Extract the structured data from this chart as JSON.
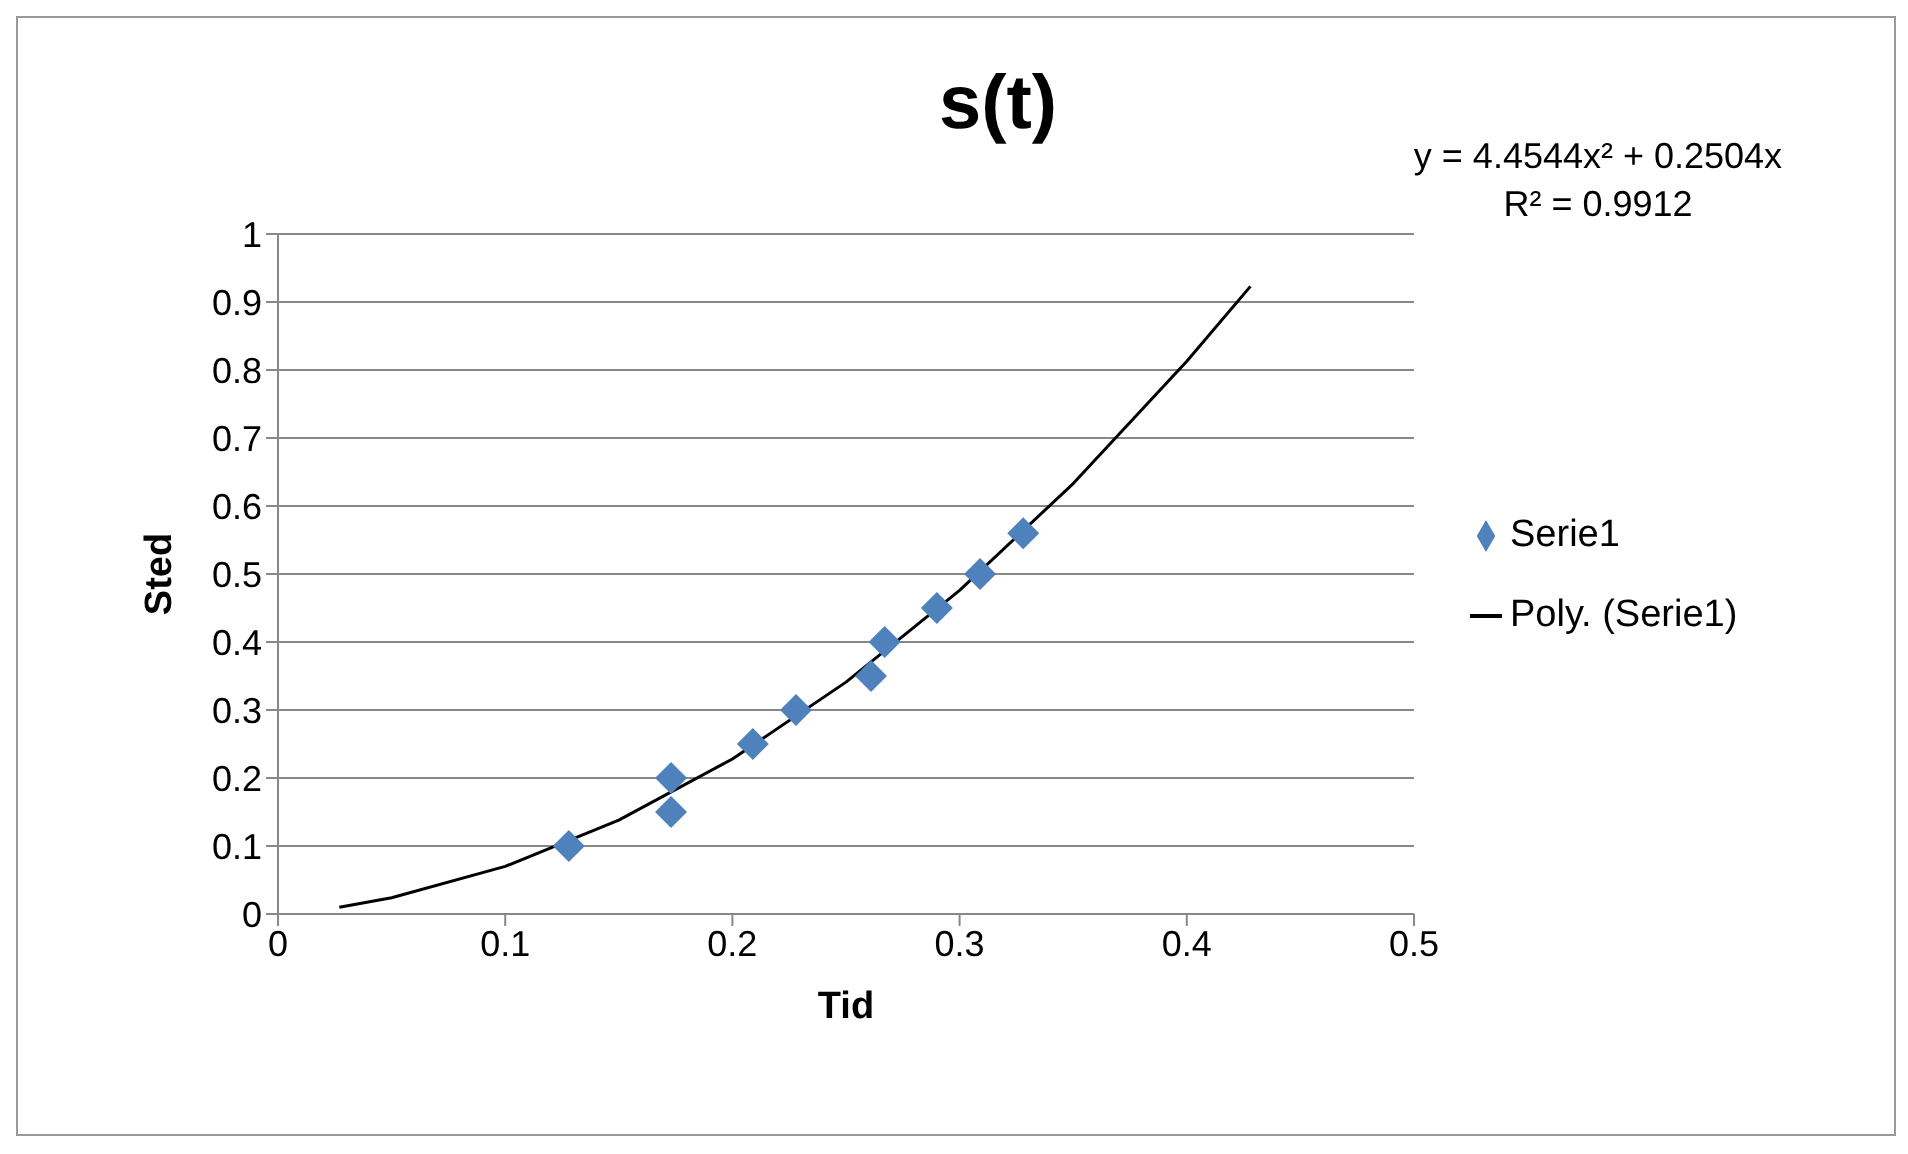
{
  "chart_data": {
    "type": "scatter",
    "title": "s(t)",
    "xlabel": "Tid",
    "ylabel": "Sted",
    "annotations": [
      "y = 4.4544x² + 0.2504x",
      "R² = 0.9912"
    ],
    "series": [
      {
        "name": "Serie1",
        "type": "scatter",
        "color": "#4f81bd",
        "marker": "diamond",
        "x": [
          0.128,
          0.173,
          0.173,
          0.209,
          0.228,
          0.261,
          0.267,
          0.29,
          0.309,
          0.328
        ],
        "values": [
          0.1,
          0.2,
          0.15,
          0.25,
          0.3,
          0.35,
          0.4,
          0.45,
          0.5,
          0.56
        ]
      },
      {
        "name": "Poly. (Serie1)",
        "type": "line",
        "color": "#000000",
        "marker": "none",
        "line_style": "solid",
        "x": [
          0.027,
          0.05,
          0.1,
          0.15,
          0.2,
          0.25,
          0.3,
          0.35,
          0.4,
          0.428
        ],
        "values": [
          0.01,
          0.024,
          0.07,
          0.138,
          0.228,
          0.341,
          0.476,
          0.633,
          0.813,
          0.923
        ]
      }
    ],
    "xlim": [
      0,
      0.5
    ],
    "xticks": [
      0,
      0.1,
      0.2,
      0.3,
      0.4,
      0.5
    ],
    "ylim": [
      0,
      1
    ],
    "yticks": [
      0,
      0.1,
      0.2,
      0.3,
      0.4,
      0.5,
      0.6,
      0.7,
      0.8,
      0.9,
      1
    ],
    "grid": "y",
    "legend": "right"
  }
}
